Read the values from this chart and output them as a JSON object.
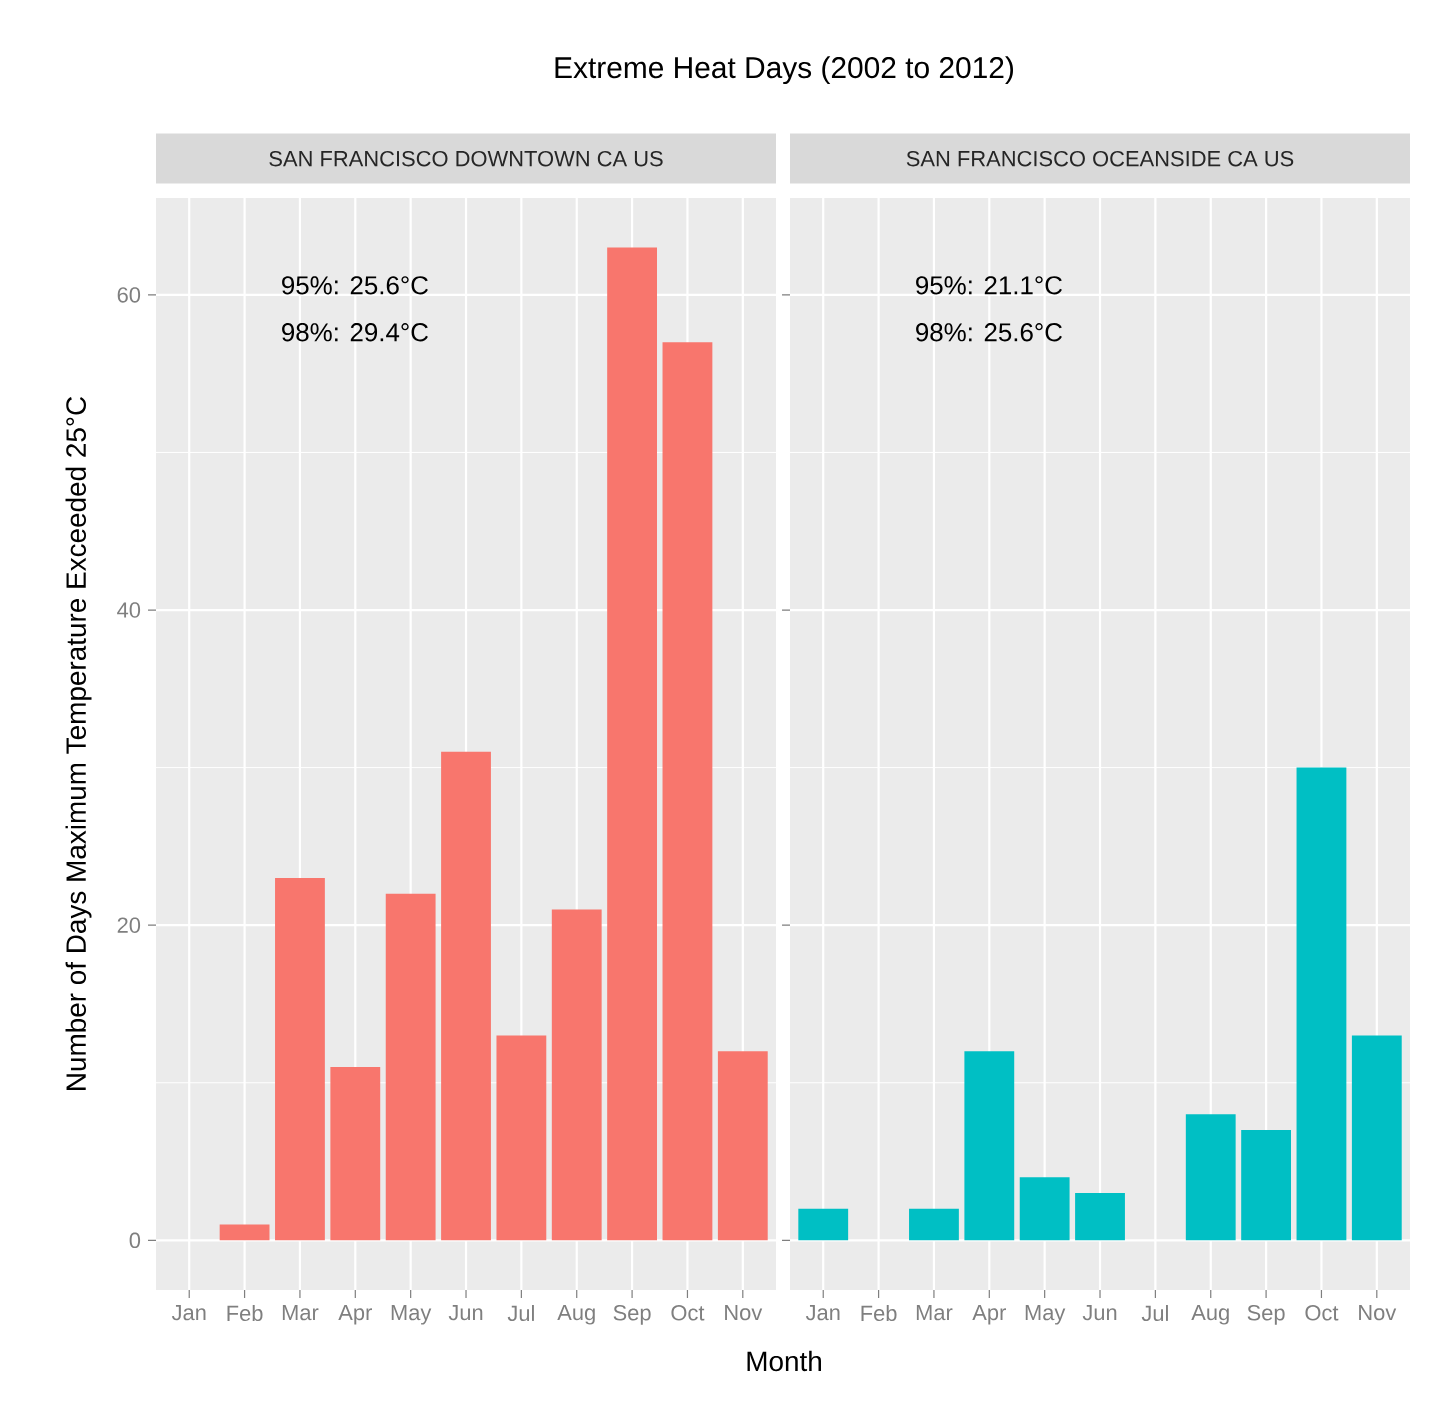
{
  "chart_data": [
    {
      "type": "bar",
      "title": "Extreme Heat Days (2002 to 2012)",
      "subtitle": "SAN FRANCISCO DOWNTOWN CA US",
      "xlabel": "Month",
      "ylabel": "Number of Days Maximum Temperature Exceeded 25°C",
      "categories": [
        "Jan",
        "Feb",
        "Mar",
        "Apr",
        "May",
        "Jun",
        "Jul",
        "Aug",
        "Sep",
        "Oct",
        "Nov"
      ],
      "values": [
        0,
        1,
        23,
        11,
        22,
        31,
        13,
        21,
        63,
        57,
        12
      ],
      "color": "#f8766d",
      "ylim": [
        -3.15,
        66.15
      ],
      "yticks": [
        0,
        20,
        40,
        60
      ],
      "grid": true,
      "annotations": [
        "95%: 25.6°C",
        "98%: 29.4°C"
      ]
    },
    {
      "type": "bar",
      "subtitle": "SAN FRANCISCO OCEANSIDE CA US",
      "categories": [
        "Jan",
        "Feb",
        "Mar",
        "Apr",
        "May",
        "Jun",
        "Jul",
        "Aug",
        "Sep",
        "Oct",
        "Nov"
      ],
      "values": [
        2,
        0,
        2,
        12,
        4,
        3,
        0,
        8,
        7,
        30,
        13
      ],
      "color": "#00bfc4",
      "ylim": [
        -3.15,
        66.15
      ],
      "yticks": [
        0,
        20,
        40,
        60
      ],
      "grid": true,
      "tick_labels": "x",
      "annotations": [
        "95%: 21.1°C",
        "98%: 25.6°C"
      ]
    }
  ]
}
